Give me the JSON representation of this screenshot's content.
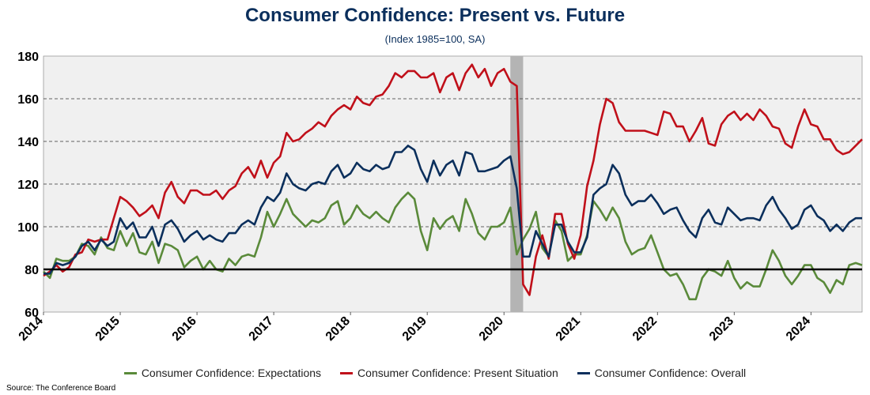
{
  "title": "Consumer Confidence: Present vs. Future",
  "subtitle": "(Index 1985=100, SA)",
  "source": "Source: The Conference Board",
  "colors": {
    "expectations": "#5a8a3a",
    "present": "#c0101a",
    "overall": "#0b2f5c",
    "recession": "#b4b4b4",
    "plot_bg": "#f0f0f0",
    "reference": "#000000"
  },
  "chart_data": {
    "type": "line",
    "title": "Consumer Confidence: Present vs. Future",
    "subtitle": "(Index 1985=100, SA)",
    "x_start": "2014-01",
    "x_end": "2024-09",
    "x_tick_labels": [
      "2014",
      "2015",
      "2016",
      "2017",
      "2018",
      "2019",
      "2020",
      "2021",
      "2022",
      "2023",
      "2024"
    ],
    "y_tick_labels": [
      "60",
      "80",
      "100",
      "120",
      "140",
      "160",
      "180"
    ],
    "ylim": [
      60,
      180
    ],
    "grid": "horizontal dashed",
    "legend_placement": "bottom",
    "reference_line": 80,
    "shaded_period": {
      "start": "2020-02",
      "end": "2020-04"
    },
    "series": [
      {
        "name": "Consumer Confidence: Expectations",
        "color_key": "expectations",
        "values": [
          79,
          76,
          85,
          84,
          84,
          86,
          92,
          91,
          87,
          95,
          90,
          89,
          98,
          91,
          97,
          88,
          87,
          93,
          83,
          92,
          91,
          89,
          81,
          84,
          86,
          80,
          84,
          80,
          79,
          85,
          82,
          86,
          87,
          86,
          95,
          107,
          100,
          106,
          113,
          106,
          103,
          100,
          103,
          102,
          104,
          110,
          112,
          101,
          104,
          110,
          106,
          104,
          107,
          104,
          102,
          109,
          113,
          116,
          113,
          98,
          89,
          104,
          99,
          103,
          105,
          98,
          113,
          106,
          97,
          94,
          100,
          100,
          102,
          109,
          87,
          94,
          99,
          107,
          90,
          86,
          103,
          98,
          84,
          87,
          87,
          96,
          112,
          108,
          103,
          109,
          104,
          93,
          87,
          89,
          90,
          96,
          88,
          80,
          77,
          78,
          73,
          66,
          66,
          76,
          80,
          79,
          77,
          84,
          76,
          71,
          74,
          72,
          72,
          80,
          89,
          84,
          77,
          73,
          77,
          82,
          82,
          76,
          74,
          69,
          75,
          73,
          82,
          83,
          82
        ]
      },
      {
        "name": "Consumer Confidence: Present Situation",
        "color_key": "present",
        "values": [
          77,
          79,
          82,
          79,
          81,
          87,
          88,
          94,
          93,
          94,
          94,
          104,
          114,
          112,
          109,
          105,
          107,
          110,
          104,
          116,
          121,
          114,
          111,
          117,
          117,
          115,
          115,
          117,
          113,
          117,
          119,
          125,
          128,
          123,
          131,
          123,
          130,
          133,
          144,
          140,
          141,
          144,
          146,
          149,
          147,
          152,
          155,
          157,
          155,
          161,
          158,
          157,
          161,
          162,
          166,
          172,
          170,
          173,
          173,
          170,
          170,
          172,
          163,
          170,
          172,
          164,
          172,
          176,
          170,
          174,
          166,
          172,
          174,
          168,
          166,
          73,
          68,
          86,
          96,
          85,
          106,
          106,
          92,
          85,
          96,
          119,
          131,
          148,
          160,
          158,
          149,
          145,
          145,
          145,
          145,
          144,
          143,
          154,
          153,
          147,
          147,
          140,
          145,
          151,
          139,
          138,
          148,
          152,
          154,
          150,
          153,
          150,
          155,
          152,
          147,
          146,
          139,
          137,
          147,
          155,
          148,
          147,
          141,
          141,
          136,
          134,
          135,
          138,
          141
        ]
      },
      {
        "name": "Consumer Confidence: Overall",
        "color_key": "overall",
        "values": [
          78,
          78,
          83,
          82,
          83,
          86,
          91,
          93,
          89,
          94,
          91,
          93,
          104,
          99,
          102,
          95,
          95,
          100,
          91,
          101,
          103,
          99,
          93,
          96,
          98,
          94,
          96,
          94,
          93,
          97,
          97,
          101,
          103,
          101,
          109,
          114,
          112,
          116,
          125,
          120,
          118,
          117,
          120,
          121,
          120,
          126,
          129,
          123,
          125,
          130,
          127,
          126,
          129,
          127,
          128,
          135,
          135,
          138,
          136,
          127,
          121,
          131,
          124,
          129,
          131,
          124,
          135,
          134,
          126,
          126,
          127,
          128,
          131,
          133,
          118,
          86,
          86,
          98,
          92,
          86,
          101,
          101,
          93,
          88,
          88,
          95,
          115,
          118,
          120,
          129,
          125,
          115,
          110,
          112,
          112,
          115,
          111,
          106,
          108,
          109,
          103,
          98,
          95,
          104,
          108,
          102,
          101,
          109,
          106,
          103,
          104,
          104,
          103,
          110,
          114,
          108,
          104,
          99,
          101,
          108,
          110,
          105,
          103,
          98,
          101,
          98,
          102,
          104,
          104
        ]
      }
    ]
  }
}
